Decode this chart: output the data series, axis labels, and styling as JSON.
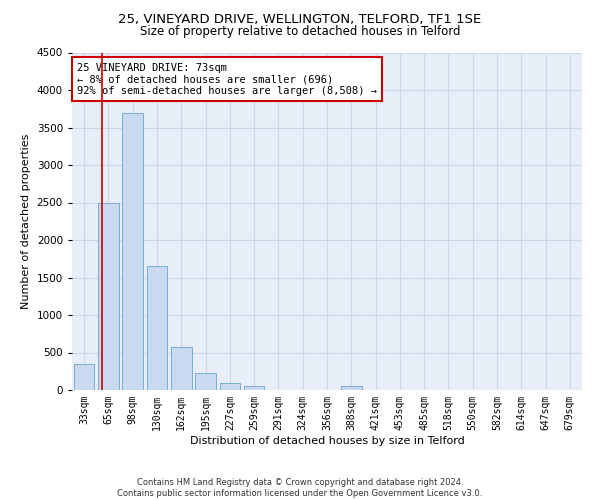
{
  "title1": "25, VINEYARD DRIVE, WELLINGTON, TELFORD, TF1 1SE",
  "title2": "Size of property relative to detached houses in Telford",
  "xlabel": "Distribution of detached houses by size in Telford",
  "ylabel": "Number of detached properties",
  "categories": [
    "33sqm",
    "65sqm",
    "98sqm",
    "130sqm",
    "162sqm",
    "195sqm",
    "227sqm",
    "259sqm",
    "291sqm",
    "324sqm",
    "356sqm",
    "388sqm",
    "421sqm",
    "453sqm",
    "485sqm",
    "518sqm",
    "550sqm",
    "582sqm",
    "614sqm",
    "647sqm",
    "679sqm"
  ],
  "values": [
    350,
    2500,
    3700,
    1650,
    580,
    230,
    100,
    60,
    0,
    0,
    0,
    60,
    0,
    0,
    0,
    0,
    0,
    0,
    0,
    0,
    0
  ],
  "bar_color": "#c9d9f0",
  "bar_edge_color": "#7aadd4",
  "grid_color": "#ccd6e8",
  "background_color": "#e8eef8",
  "annotation_box_text": "25 VINEYARD DRIVE: 73sqm\n← 8% of detached houses are smaller (696)\n92% of semi-detached houses are larger (8,508) →",
  "vline_x": 0.72,
  "vline_color": "#cc0000",
  "ylim": [
    0,
    4500
  ],
  "yticks": [
    0,
    500,
    1000,
    1500,
    2000,
    2500,
    3000,
    3500,
    4000,
    4500
  ],
  "footer": "Contains HM Land Registry data © Crown copyright and database right 2024.\nContains public sector information licensed under the Open Government Licence v3.0.",
  "title1_fontsize": 9.5,
  "title2_fontsize": 8.5,
  "xlabel_fontsize": 8,
  "ylabel_fontsize": 8,
  "ann_fontsize": 7.5
}
